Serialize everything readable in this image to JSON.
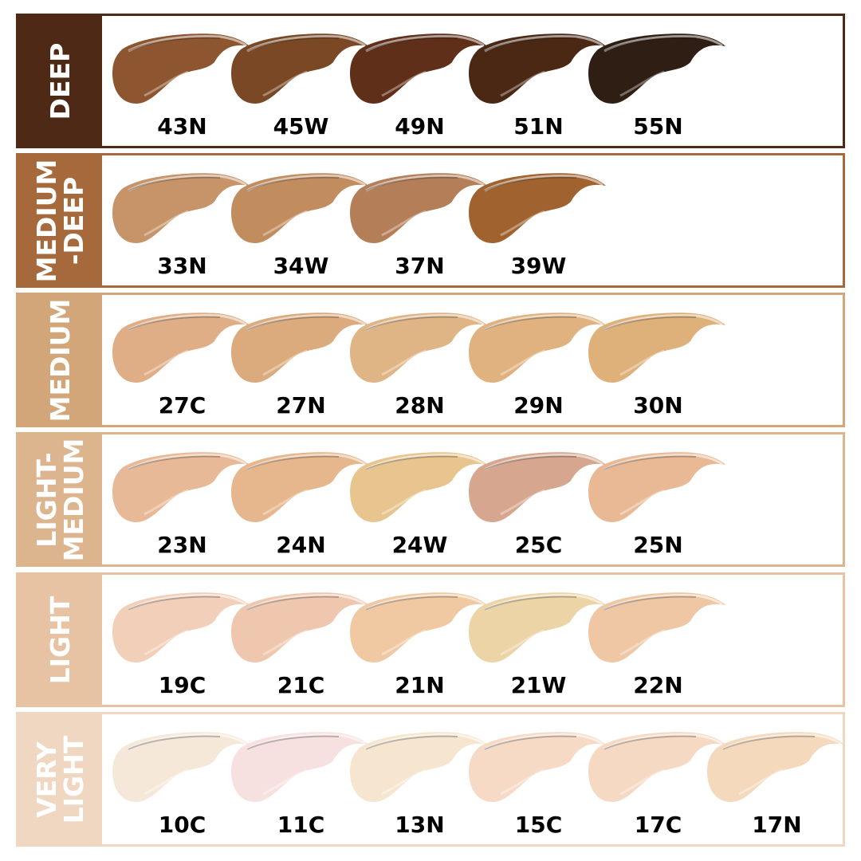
{
  "categories": [
    {
      "label": [
        "DEEP"
      ],
      "color": "#4e2a16",
      "shades": [
        {
          "name": "43N",
          "color": "#8e5630"
        },
        {
          "name": "45W",
          "color": "#7a4825"
        },
        {
          "name": "49N",
          "color": "#5f2f1a"
        },
        {
          "name": "51N",
          "color": "#4a2814"
        },
        {
          "name": "55N",
          "color": "#2f1e13"
        }
      ]
    },
    {
      "label": [
        "MEDIUM",
        "-DEEP"
      ],
      "color": "#a5693b",
      "shades": [
        {
          "name": "33N",
          "color": "#c69468"
        },
        {
          "name": "34W",
          "color": "#c28d5e"
        },
        {
          "name": "37N",
          "color": "#b47e58"
        },
        {
          "name": "39W",
          "color": "#a0632f"
        }
      ]
    },
    {
      "label": [
        "MEDIUM"
      ],
      "color": "#d2a679",
      "shades": [
        {
          "name": "27C",
          "color": "#dfae86"
        },
        {
          "name": "27N",
          "color": "#dcab7d"
        },
        {
          "name": "28N",
          "color": "#e0b585"
        },
        {
          "name": "29N",
          "color": "#e0b27f"
        },
        {
          "name": "30N",
          "color": "#deb07a"
        }
      ]
    },
    {
      "label": [
        "LIGHT-",
        "MEDIUM"
      ],
      "color": "#dcb48e",
      "shades": [
        {
          "name": "23N",
          "color": "#e8b996"
        },
        {
          "name": "24N",
          "color": "#e6b68d"
        },
        {
          "name": "24W",
          "color": "#e8c58f"
        },
        {
          "name": "25C",
          "color": "#d6a68e"
        },
        {
          "name": "25N",
          "color": "#e8b994"
        }
      ]
    },
    {
      "label": [
        "LIGHT"
      ],
      "color": "#e8c3a3",
      "shades": [
        {
          "name": "19C",
          "color": "#f2cfb8"
        },
        {
          "name": "21C",
          "color": "#efc7ae"
        },
        {
          "name": "21N",
          "color": "#f0c9a3"
        },
        {
          "name": "21W",
          "color": "#ecd4a6"
        },
        {
          "name": "22N",
          "color": "#efc7a5"
        }
      ]
    },
    {
      "label": [
        "VERY",
        "LIGHT"
      ],
      "color": "#f0d7c1",
      "shades": [
        {
          "name": "10C",
          "color": "#f6e8d9"
        },
        {
          "name": "11C",
          "color": "#f7e0e0"
        },
        {
          "name": "13N",
          "color": "#f6e6cf"
        },
        {
          "name": "15C",
          "color": "#f6dac6"
        },
        {
          "name": "17C",
          "color": "#f6d9c3"
        },
        {
          "name": "17N",
          "color": "#f4d9bd"
        }
      ]
    }
  ]
}
